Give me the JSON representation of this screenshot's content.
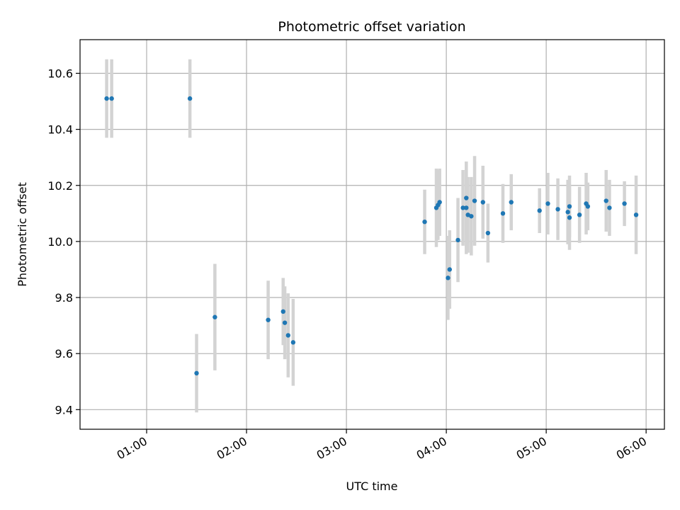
{
  "chart_data": {
    "type": "scatter",
    "title": "Photometric offset variation",
    "xlabel": "UTC time",
    "ylabel": "Photometric offset",
    "x_tick_labels": [
      "01:00",
      "02:00",
      "03:00",
      "04:00",
      "05:00",
      "06:00"
    ],
    "y_tick_labels": [
      "9.4",
      "9.6",
      "9.8",
      "10.0",
      "10.2",
      "10.4",
      "10.6"
    ],
    "xlim": [
      "00:20",
      "06:11"
    ],
    "ylim": [
      9.33,
      10.72
    ],
    "grid": true,
    "marker_color": "#1f77b4",
    "errorbar_color": "#d3d3d3",
    "series": [
      {
        "points": [
          {
            "x": "00:36",
            "y": 10.51,
            "err": 0.14
          },
          {
            "x": "00:39",
            "y": 10.51,
            "err": 0.14
          },
          {
            "x": "01:26",
            "y": 10.51,
            "err": 0.14
          },
          {
            "x": "01:30",
            "y": 9.53,
            "err": 0.14
          },
          {
            "x": "01:41",
            "y": 9.73,
            "err": 0.19
          },
          {
            "x": "02:13",
            "y": 9.72,
            "err": 0.14
          },
          {
            "x": "02:22",
            "y": 9.75,
            "err": 0.12
          },
          {
            "x": "02:23",
            "y": 9.71,
            "err": 0.13
          },
          {
            "x": "02:25",
            "y": 9.665,
            "err": 0.15
          },
          {
            "x": "02:28",
            "y": 9.64,
            "err": 0.155
          },
          {
            "x": "03:47",
            "y": 10.07,
            "err": 0.115
          },
          {
            "x": "03:54",
            "y": 10.12,
            "err": 0.14
          },
          {
            "x": "03:55",
            "y": 10.13,
            "err": 0.125
          },
          {
            "x": "03:56",
            "y": 10.14,
            "err": 0.12
          },
          {
            "x": "04:01",
            "y": 9.87,
            "err": 0.15
          },
          {
            "x": "04:02",
            "y": 9.9,
            "err": 0.14
          },
          {
            "x": "04:07",
            "y": 10.005,
            "err": 0.15
          },
          {
            "x": "04:10",
            "y": 10.12,
            "err": 0.135
          },
          {
            "x": "04:12",
            "y": 10.155,
            "err": 0.13
          },
          {
            "x": "04:12",
            "y": 10.12,
            "err": 0.165
          },
          {
            "x": "04:13",
            "y": 10.095,
            "err": 0.135
          },
          {
            "x": "04:15",
            "y": 10.09,
            "err": 0.14
          },
          {
            "x": "04:17",
            "y": 10.145,
            "err": 0.16
          },
          {
            "x": "04:22",
            "y": 10.14,
            "err": 0.13
          },
          {
            "x": "04:25",
            "y": 10.03,
            "err": 0.105
          },
          {
            "x": "04:34",
            "y": 10.1,
            "err": 0.105
          },
          {
            "x": "04:39",
            "y": 10.14,
            "err": 0.1
          },
          {
            "x": "04:56",
            "y": 10.11,
            "err": 0.08
          },
          {
            "x": "05:01",
            "y": 10.135,
            "err": 0.11
          },
          {
            "x": "05:07",
            "y": 10.115,
            "err": 0.11
          },
          {
            "x": "05:13",
            "y": 10.105,
            "err": 0.115
          },
          {
            "x": "05:14",
            "y": 10.125,
            "err": 0.11
          },
          {
            "x": "05:14",
            "y": 10.085,
            "err": 0.115
          },
          {
            "x": "05:20",
            "y": 10.095,
            "err": 0.1
          },
          {
            "x": "05:24",
            "y": 10.135,
            "err": 0.11
          },
          {
            "x": "05:25",
            "y": 10.125,
            "err": 0.085
          },
          {
            "x": "05:36",
            "y": 10.145,
            "err": 0.11
          },
          {
            "x": "05:38",
            "y": 10.12,
            "err": 0.1
          },
          {
            "x": "05:47",
            "y": 10.135,
            "err": 0.08
          },
          {
            "x": "05:54",
            "y": 10.095,
            "err": 0.14
          }
        ]
      }
    ]
  }
}
